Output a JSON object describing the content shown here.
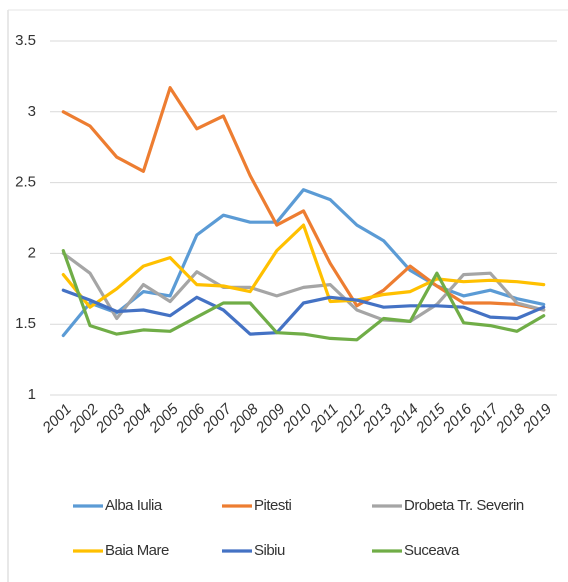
{
  "chart_data": {
    "type": "line",
    "categories": [
      "2001",
      "2002",
      "2003",
      "2004",
      "2005",
      "2006",
      "2007",
      "2008",
      "2009",
      "2010",
      "2011",
      "2012",
      "2013",
      "2014",
      "2015",
      "2016",
      "2017",
      "2018",
      "2019"
    ],
    "ylim": [
      1,
      3.5
    ],
    "yticks": [
      1,
      1.5,
      2,
      2.5,
      3,
      3.5
    ],
    "grid": true,
    "legend": "bottom",
    "series": [
      {
        "name": "Alba Iulia",
        "color": "#5b9bd5",
        "values": [
          1.42,
          1.65,
          1.58,
          1.73,
          1.7,
          2.13,
          2.27,
          2.22,
          2.22,
          2.45,
          2.38,
          2.2,
          2.09,
          1.88,
          1.77,
          1.7,
          1.74,
          1.68,
          1.64
        ]
      },
      {
        "name": "Pitesti",
        "color": "#ed7d31",
        "values": [
          3.0,
          2.9,
          2.68,
          2.58,
          3.17,
          2.88,
          2.97,
          2.55,
          2.2,
          2.3,
          1.93,
          1.63,
          1.74,
          1.91,
          1.77,
          1.65,
          1.65,
          1.64,
          1.6
        ]
      },
      {
        "name": "Drobeta Tr. Severin",
        "color": "#a5a5a5",
        "values": [
          2.0,
          1.86,
          1.54,
          1.78,
          1.66,
          1.87,
          1.76,
          1.76,
          1.7,
          1.76,
          1.78,
          1.6,
          1.53,
          1.52,
          1.64,
          1.85,
          1.86,
          1.65,
          1.6
        ]
      },
      {
        "name": "Baia Mare",
        "color": "#ffc000",
        "values": [
          1.85,
          1.62,
          1.75,
          1.91,
          1.97,
          1.78,
          1.77,
          1.73,
          2.02,
          2.2,
          1.66,
          1.67,
          1.71,
          1.73,
          1.82,
          1.8,
          1.81,
          1.8,
          1.78
        ]
      },
      {
        "name": "Sibiu",
        "color": "#4472c4",
        "values": [
          1.74,
          1.67,
          1.59,
          1.6,
          1.56,
          1.69,
          1.6,
          1.43,
          1.44,
          1.65,
          1.69,
          1.67,
          1.62,
          1.63,
          1.63,
          1.62,
          1.55,
          1.54,
          1.62
        ]
      },
      {
        "name": "Suceava",
        "color": "#70ad47",
        "values": [
          2.02,
          1.49,
          1.43,
          1.46,
          1.45,
          1.55,
          1.65,
          1.65,
          1.44,
          1.43,
          1.4,
          1.39,
          1.54,
          1.52,
          1.86,
          1.51,
          1.49,
          1.45,
          1.56
        ]
      }
    ]
  }
}
